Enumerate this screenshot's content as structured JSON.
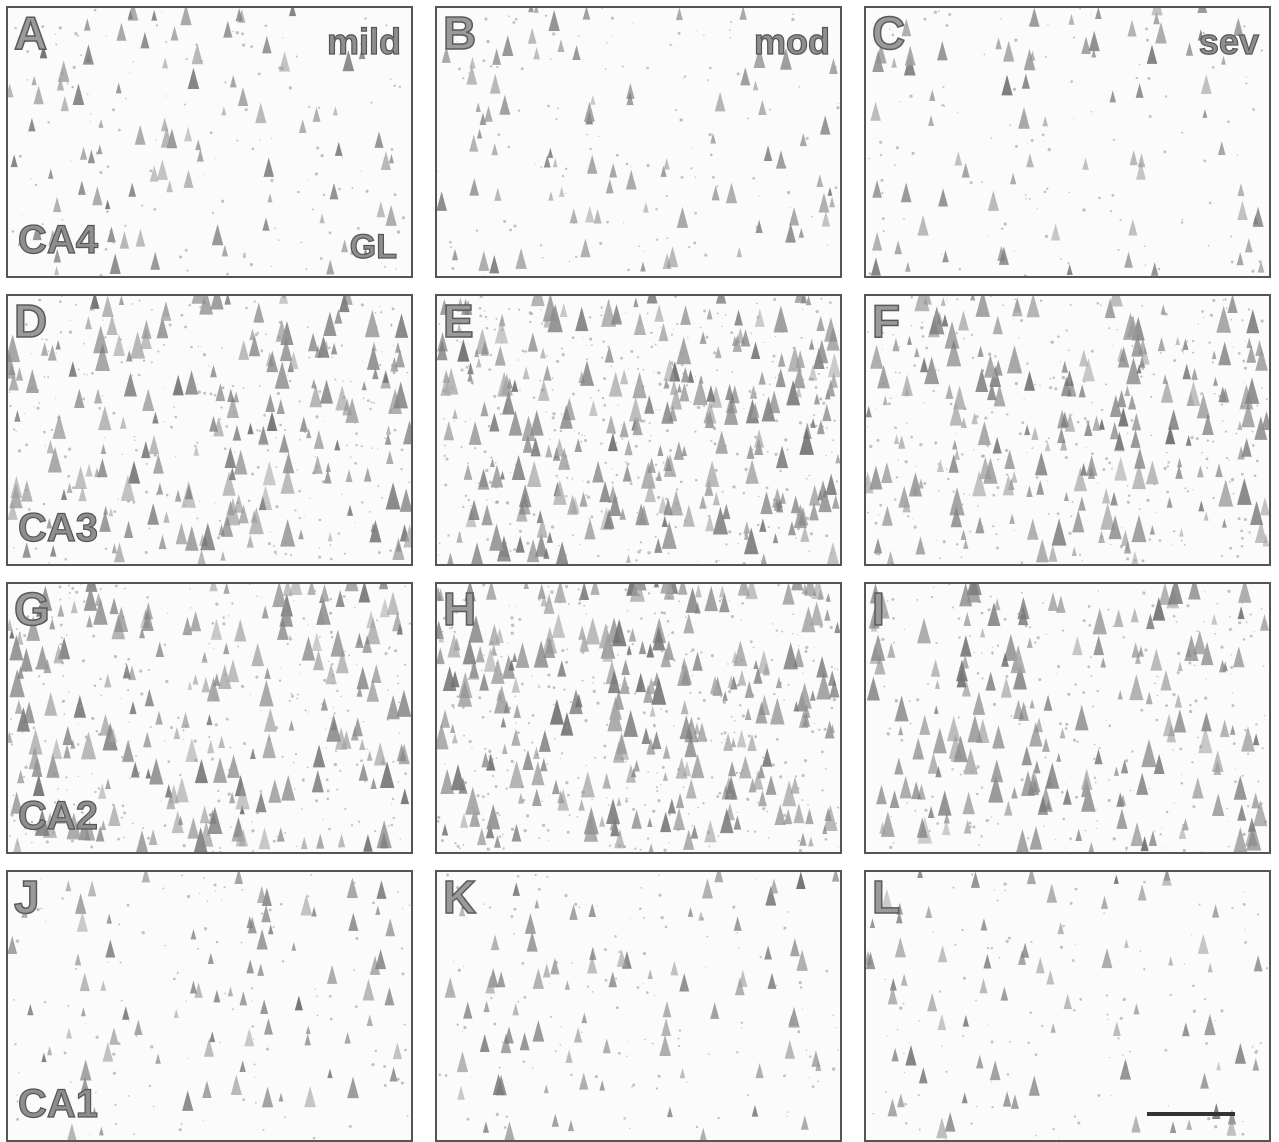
{
  "figure": {
    "panels": [
      {
        "id": "A",
        "letter": "A",
        "grade": "mild",
        "region": "CA4",
        "extra": "GL",
        "density": 0.18,
        "row": 0,
        "col": 0
      },
      {
        "id": "B",
        "letter": "B",
        "grade": "mod",
        "region": "",
        "extra": "",
        "density": 0.15,
        "row": 0,
        "col": 1
      },
      {
        "id": "C",
        "letter": "C",
        "grade": "sev",
        "region": "",
        "extra": "",
        "density": 0.12,
        "row": 0,
        "col": 2
      },
      {
        "id": "D",
        "letter": "D",
        "grade": "",
        "region": "CA3",
        "extra": "",
        "density": 0.55,
        "row": 1,
        "col": 0
      },
      {
        "id": "E",
        "letter": "E",
        "grade": "",
        "region": "",
        "extra": "",
        "density": 0.8,
        "row": 1,
        "col": 1
      },
      {
        "id": "F",
        "letter": "F",
        "grade": "",
        "region": "",
        "extra": "",
        "density": 0.6,
        "row": 1,
        "col": 2
      },
      {
        "id": "G",
        "letter": "G",
        "grade": "",
        "region": "CA2",
        "extra": "",
        "density": 0.6,
        "row": 2,
        "col": 0
      },
      {
        "id": "H",
        "letter": "H",
        "grade": "",
        "region": "",
        "extra": "",
        "density": 0.8,
        "row": 2,
        "col": 1
      },
      {
        "id": "I",
        "letter": "I",
        "grade": "",
        "region": "",
        "extra": "",
        "density": 0.5,
        "row": 2,
        "col": 2
      },
      {
        "id": "J",
        "letter": "J",
        "grade": "",
        "region": "CA1",
        "extra": "",
        "density": 0.15,
        "row": 3,
        "col": 0
      },
      {
        "id": "K",
        "letter": "K",
        "grade": "",
        "region": "",
        "extra": "",
        "density": 0.15,
        "row": 3,
        "col": 1
      },
      {
        "id": "L",
        "letter": "L",
        "grade": "",
        "region": "",
        "extra": "",
        "density": 0.12,
        "row": 3,
        "col": 2,
        "scalebar": true
      }
    ]
  }
}
